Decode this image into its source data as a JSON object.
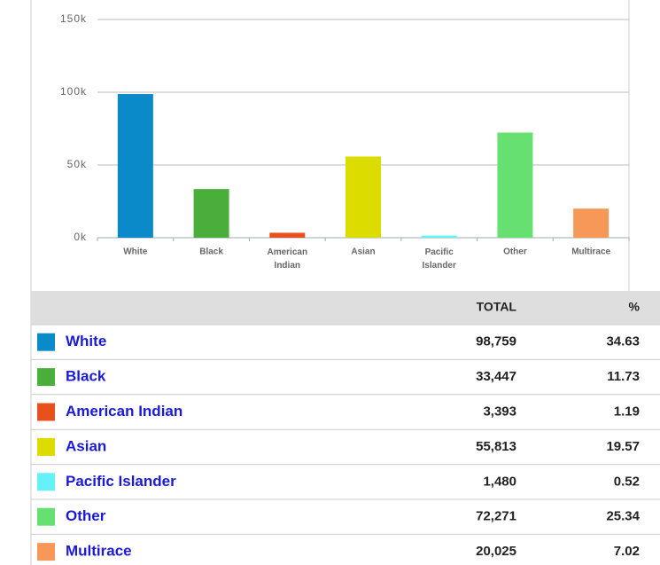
{
  "chart_data": {
    "type": "bar",
    "categories": [
      "White",
      "Black",
      "American Indian",
      "Asian",
      "Pacific Islander",
      "Other",
      "Multirace"
    ],
    "values": [
      98759,
      33447,
      3393,
      55813,
      1480,
      72271,
      20025
    ],
    "colors": [
      "#0a8ac8",
      "#4aae3a",
      "#e8501e",
      "#dcdc00",
      "#66f0f8",
      "#66e070",
      "#f89858"
    ],
    "ylim": [
      0,
      150000
    ],
    "yticks": [
      {
        "value": 0,
        "label": "0k"
      },
      {
        "value": 50000,
        "label": "50k"
      },
      {
        "value": 100000,
        "label": "100k"
      },
      {
        "value": 150000,
        "label": "150k"
      }
    ],
    "grid": true
  },
  "table": {
    "header": [
      "TOTAL",
      "%"
    ],
    "rows": [
      {
        "name": "White",
        "total": "98,759",
        "percent": "34.63"
      },
      {
        "name": "Black",
        "total": "33,447",
        "percent": "11.73"
      },
      {
        "name": "American Indian",
        "total": "3,393",
        "percent": "1.19"
      },
      {
        "name": "Asian",
        "total": "55,813",
        "percent": "19.57"
      },
      {
        "name": "Pacific Islander",
        "total": "1,480",
        "percent": "0.52"
      },
      {
        "name": "Other",
        "total": "72,271",
        "percent": "25.34"
      },
      {
        "name": "Multirace",
        "total": "20,025",
        "percent": "7.02"
      }
    ]
  }
}
